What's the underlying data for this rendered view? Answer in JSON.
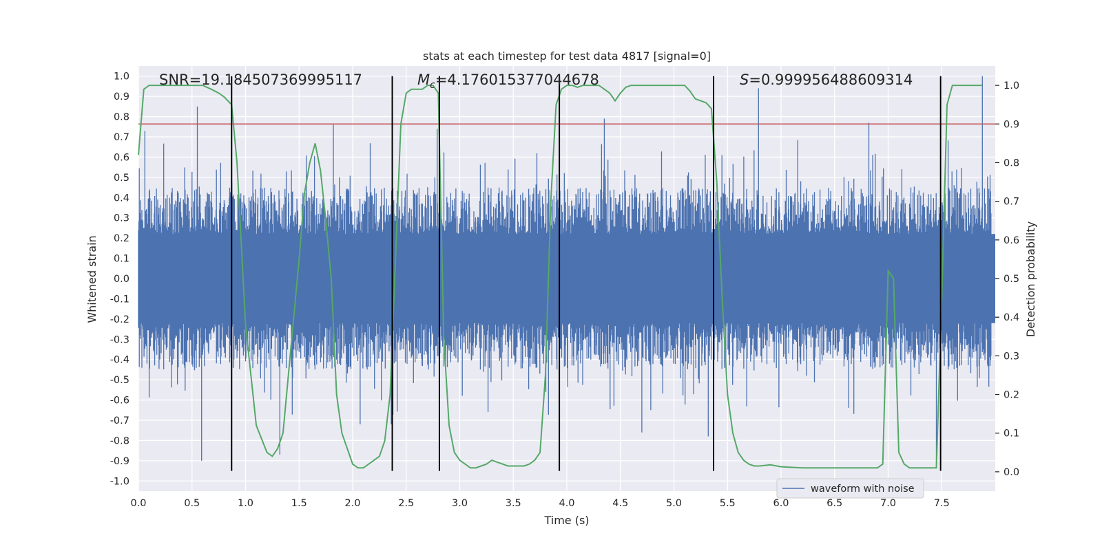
{
  "chart_data": {
    "type": "line",
    "title": "stats at each timestep for test data 4817 [signal=0]",
    "xlabel": "Time (s)",
    "ylabel_left": "Whitened strain",
    "ylabel_right": "Detection probability",
    "xlim": [
      0.0,
      8.0
    ],
    "ylim_left": [
      -1.05,
      1.05
    ],
    "ylim_right": [
      -0.05,
      1.05
    ],
    "x_ticks": [
      "0.0",
      "0.5",
      "1.0",
      "1.5",
      "2.0",
      "2.5",
      "3.0",
      "3.5",
      "4.0",
      "4.5",
      "5.0",
      "5.5",
      "6.0",
      "6.5",
      "7.0",
      "7.5"
    ],
    "y_left_ticks": [
      "1.0",
      "0.9",
      "0.8",
      "0.7",
      "0.6",
      "0.5",
      "0.4",
      "0.3",
      "0.2",
      "0.1",
      "0.0",
      "-0.1",
      "-0.2",
      "-0.3",
      "-0.4",
      "-0.5",
      "-0.6",
      "-0.7",
      "-0.8",
      "-0.9",
      "-1.0"
    ],
    "y_right_ticks": [
      "1.0",
      "0.9",
      "0.8",
      "0.7",
      "0.6",
      "0.5",
      "0.4",
      "0.3",
      "0.2",
      "0.1",
      "0.0"
    ],
    "grid": true,
    "legend_placement": "lower-right",
    "legend_entries": [
      "waveform with noise"
    ],
    "annotations": {
      "snr": "SNR=19.184507369995117",
      "mc_symbol": "M",
      "mc_subscript": "c",
      "mc_value": "=4.176015377044678",
      "s_symbol": "S",
      "s_value": "=0.999956488609314"
    },
    "threshold_line": {
      "axis": "right",
      "value": 0.9
    },
    "segment_boundaries_s": [
      0.87,
      2.37,
      2.81,
      3.93,
      5.37,
      7.49
    ],
    "waveform": {
      "name": "waveform with noise",
      "sample_step_s": 0.004,
      "core_amplitude": 0.22,
      "typical_peak": 0.45,
      "notable_peaks": [
        {
          "x": 0.55,
          "y": 0.85
        },
        {
          "x": 0.06,
          "y": 0.73
        },
        {
          "x": 0.59,
          "y": -0.9
        },
        {
          "x": 1.32,
          "y": -0.87
        },
        {
          "x": 2.36,
          "y": -0.72
        },
        {
          "x": 2.79,
          "y": 0.74
        },
        {
          "x": 4.35,
          "y": 0.79
        },
        {
          "x": 5.79,
          "y": 0.94
        },
        {
          "x": 5.32,
          "y": -0.78
        },
        {
          "x": 7.45,
          "y": -0.93
        },
        {
          "x": 7.88,
          "y": 1.0
        },
        {
          "x": 6.82,
          "y": 0.77
        },
        {
          "x": 1.82,
          "y": 0.76
        },
        {
          "x": 2.07,
          "y": -0.72
        },
        {
          "x": 4.7,
          "y": -0.76
        }
      ]
    },
    "detection_probability": {
      "name": "detection probability",
      "x": [
        0.0,
        0.05,
        0.1,
        0.2,
        0.3,
        0.4,
        0.5,
        0.6,
        0.68,
        0.75,
        0.8,
        0.87,
        0.92,
        1.0,
        1.1,
        1.2,
        1.25,
        1.3,
        1.35,
        1.4,
        1.45,
        1.5,
        1.55,
        1.6,
        1.65,
        1.7,
        1.75,
        1.8,
        1.85,
        1.9,
        1.95,
        2.0,
        2.05,
        2.1,
        2.15,
        2.2,
        2.25,
        2.3,
        2.35,
        2.4,
        2.45,
        2.5,
        2.55,
        2.6,
        2.65,
        2.7,
        2.75,
        2.8,
        2.85,
        2.9,
        2.95,
        3.0,
        3.05,
        3.1,
        3.15,
        3.2,
        3.25,
        3.3,
        3.35,
        3.4,
        3.45,
        3.5,
        3.55,
        3.6,
        3.65,
        3.7,
        3.75,
        3.8,
        3.85,
        3.9,
        3.95,
        4.0,
        4.05,
        4.1,
        4.15,
        4.2,
        4.25,
        4.3,
        4.35,
        4.4,
        4.45,
        4.5,
        4.55,
        4.6,
        4.7,
        4.8,
        4.9,
        5.0,
        5.1,
        5.15,
        5.2,
        5.25,
        5.3,
        5.35,
        5.4,
        5.45,
        5.5,
        5.55,
        5.6,
        5.65,
        5.7,
        5.75,
        5.8,
        5.9,
        6.0,
        6.2,
        6.5,
        6.8,
        6.9,
        6.95,
        7.0,
        7.05,
        7.1,
        7.15,
        7.2,
        7.3,
        7.35,
        7.4,
        7.45,
        7.5,
        7.55,
        7.6,
        7.7,
        7.8,
        7.88
      ],
      "y": [
        0.82,
        0.99,
        1.0,
        1.0,
        1.0,
        1.0,
        1.0,
        1.0,
        0.99,
        0.98,
        0.97,
        0.95,
        0.8,
        0.38,
        0.12,
        0.05,
        0.04,
        0.06,
        0.1,
        0.25,
        0.4,
        0.55,
        0.72,
        0.8,
        0.85,
        0.78,
        0.65,
        0.5,
        0.2,
        0.1,
        0.06,
        0.02,
        0.01,
        0.01,
        0.02,
        0.03,
        0.04,
        0.08,
        0.2,
        0.55,
        0.9,
        0.98,
        0.99,
        0.99,
        0.99,
        1.0,
        1.0,
        0.98,
        0.35,
        0.12,
        0.05,
        0.03,
        0.02,
        0.01,
        0.01,
        0.015,
        0.02,
        0.03,
        0.025,
        0.02,
        0.015,
        0.015,
        0.015,
        0.015,
        0.02,
        0.03,
        0.05,
        0.25,
        0.7,
        0.95,
        0.99,
        1.0,
        1.0,
        0.995,
        1.0,
        1.0,
        1.0,
        1.0,
        0.99,
        0.98,
        0.96,
        0.98,
        0.995,
        1.0,
        1.0,
        1.0,
        1.0,
        1.0,
        1.0,
        0.985,
        0.965,
        0.96,
        0.955,
        0.94,
        0.75,
        0.45,
        0.2,
        0.1,
        0.05,
        0.03,
        0.02,
        0.015,
        0.015,
        0.018,
        0.013,
        0.01,
        0.01,
        0.01,
        0.01,
        0.02,
        0.52,
        0.5,
        0.05,
        0.02,
        0.01,
        0.01,
        0.01,
        0.01,
        0.01,
        0.45,
        0.95,
        1.0,
        1.0,
        1.0,
        1.0
      ]
    }
  }
}
